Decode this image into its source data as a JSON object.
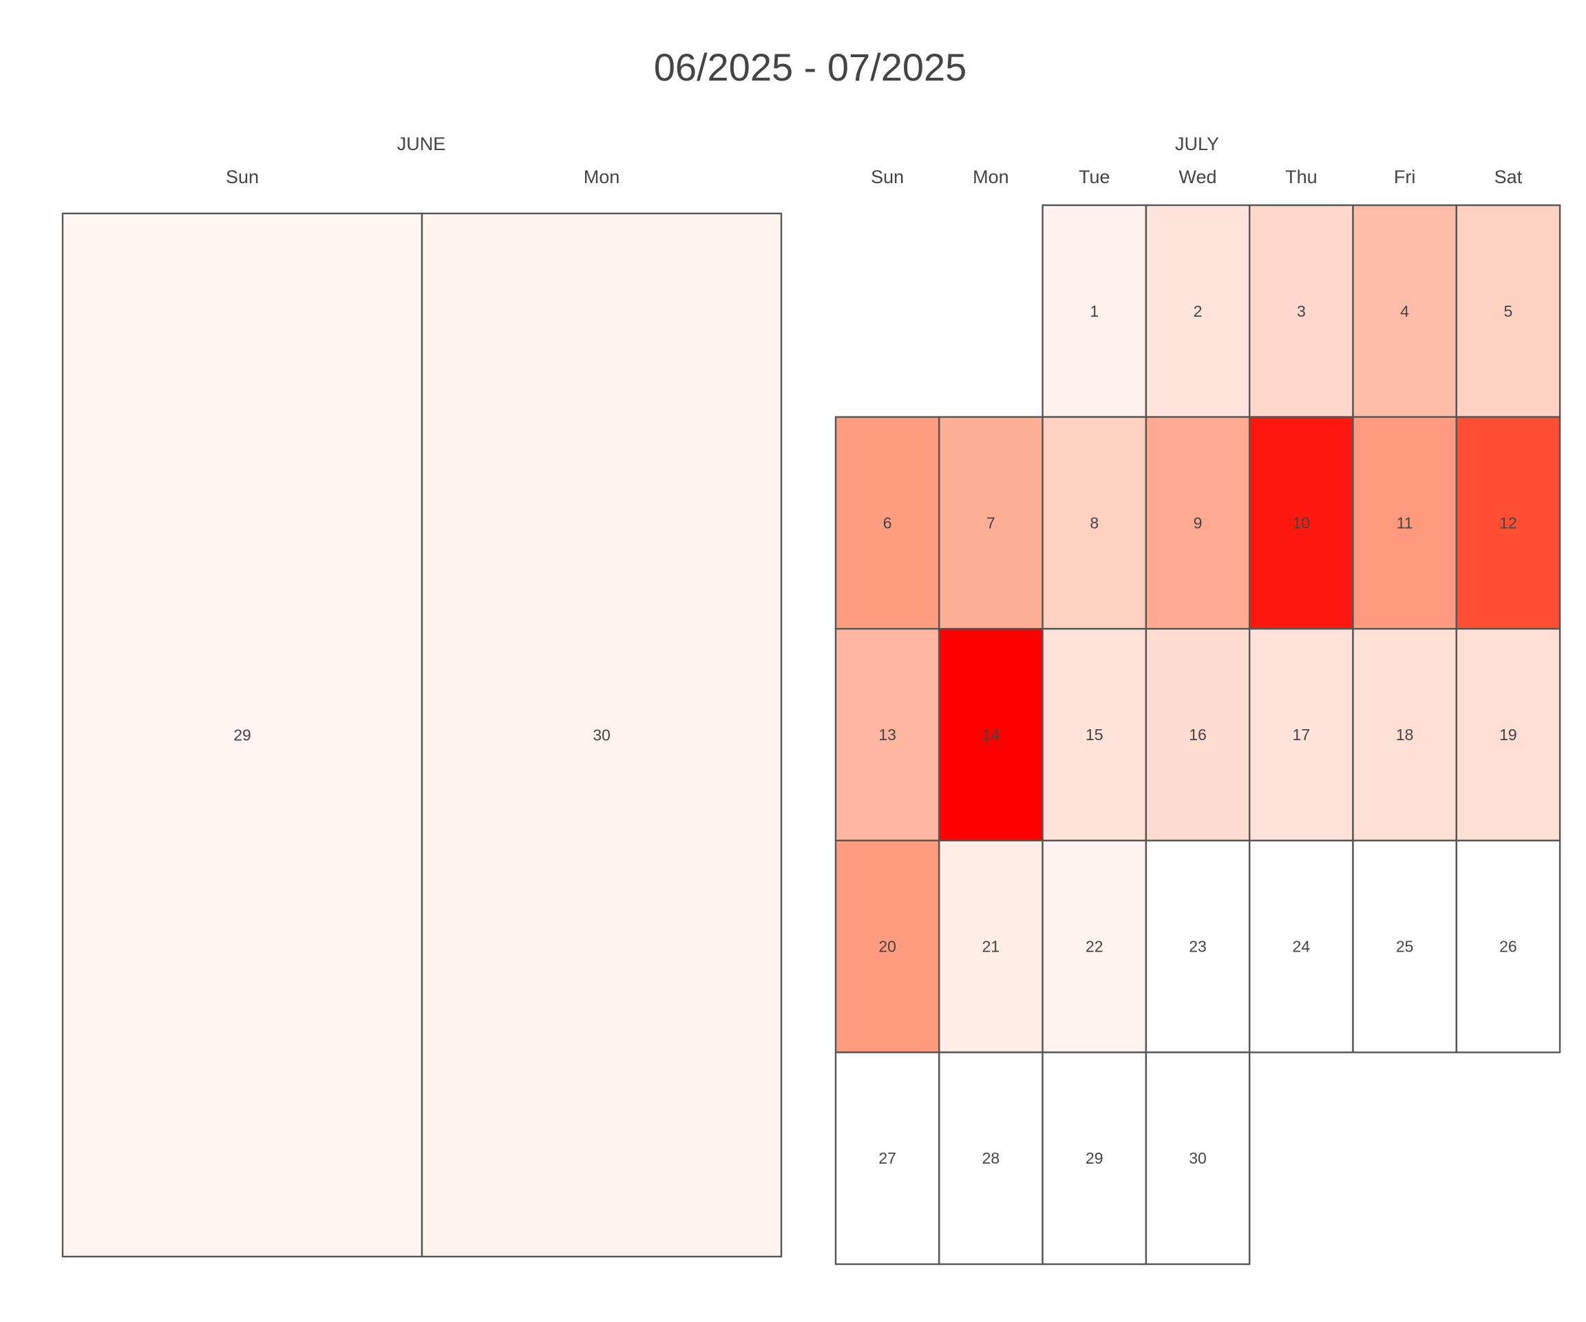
{
  "chart_data": {
    "type": "heatmap",
    "title": "06/2025 - 07/2025",
    "months": [
      {
        "name": "JUNE",
        "weekdays": [
          "Sun",
          "Mon"
        ],
        "days": [
          {
            "day": "29",
            "dow": 0,
            "week": 0,
            "color": "#fff6f3"
          },
          {
            "day": "30",
            "dow": 1,
            "week": 0,
            "color": "#fff3ef"
          }
        ]
      },
      {
        "name": "JULY",
        "weekdays": [
          "Sun",
          "Mon",
          "Tue",
          "Wed",
          "Thu",
          "Fri",
          "Sat"
        ],
        "days": [
          {
            "day": "1",
            "dow": 2,
            "week": 0,
            "color": "#fff2ee"
          },
          {
            "day": "2",
            "dow": 3,
            "week": 0,
            "color": "#ffe4db"
          },
          {
            "day": "3",
            "dow": 4,
            "week": 0,
            "color": "#ffd8cc"
          },
          {
            "day": "4",
            "dow": 5,
            "week": 0,
            "color": "#ffbca8"
          },
          {
            "day": "5",
            "dow": 6,
            "week": 0,
            "color": "#ffd1c2"
          },
          {
            "day": "6",
            "dow": 0,
            "week": 1,
            "color": "#ff9d80"
          },
          {
            "day": "7",
            "dow": 1,
            "week": 1,
            "color": "#ffad94"
          },
          {
            "day": "8",
            "dow": 2,
            "week": 1,
            "color": "#ffcfc0"
          },
          {
            "day": "9",
            "dow": 3,
            "week": 1,
            "color": "#ffaa90"
          },
          {
            "day": "10",
            "dow": 4,
            "week": 1,
            "color": "#ff160c"
          },
          {
            "day": "11",
            "dow": 5,
            "week": 1,
            "color": "#ff9a7c"
          },
          {
            "day": "12",
            "dow": 6,
            "week": 1,
            "color": "#ff4e33"
          },
          {
            "day": "13",
            "dow": 0,
            "week": 2,
            "color": "#ffb6a0"
          },
          {
            "day": "14",
            "dow": 1,
            "week": 2,
            "color": "#ff0000"
          },
          {
            "day": "15",
            "dow": 2,
            "week": 2,
            "color": "#ffe2d8"
          },
          {
            "day": "16",
            "dow": 3,
            "week": 2,
            "color": "#ffdccf"
          },
          {
            "day": "17",
            "dow": 4,
            "week": 2,
            "color": "#ffe3da"
          },
          {
            "day": "18",
            "dow": 5,
            "week": 2,
            "color": "#ffdfd4"
          },
          {
            "day": "19",
            "dow": 6,
            "week": 2,
            "color": "#ffdfd4"
          },
          {
            "day": "20",
            "dow": 0,
            "week": 3,
            "color": "#ff9b7e"
          },
          {
            "day": "21",
            "dow": 1,
            "week": 3,
            "color": "#ffede6"
          },
          {
            "day": "22",
            "dow": 2,
            "week": 3,
            "color": "#fff4f0"
          },
          {
            "day": "23",
            "dow": 3,
            "week": 3,
            "color": "#ffffff"
          },
          {
            "day": "24",
            "dow": 4,
            "week": 3,
            "color": "#ffffff"
          },
          {
            "day": "25",
            "dow": 5,
            "week": 3,
            "color": "#ffffff"
          },
          {
            "day": "26",
            "dow": 6,
            "week": 3,
            "color": "#ffffff"
          },
          {
            "day": "27",
            "dow": 0,
            "week": 4,
            "color": "#ffffff"
          },
          {
            "day": "28",
            "dow": 1,
            "week": 4,
            "color": "#ffffff"
          },
          {
            "day": "29",
            "dow": 2,
            "week": 4,
            "color": "#ffffff"
          },
          {
            "day": "30",
            "dow": 3,
            "week": 4,
            "color": "#ffffff"
          }
        ]
      }
    ]
  }
}
